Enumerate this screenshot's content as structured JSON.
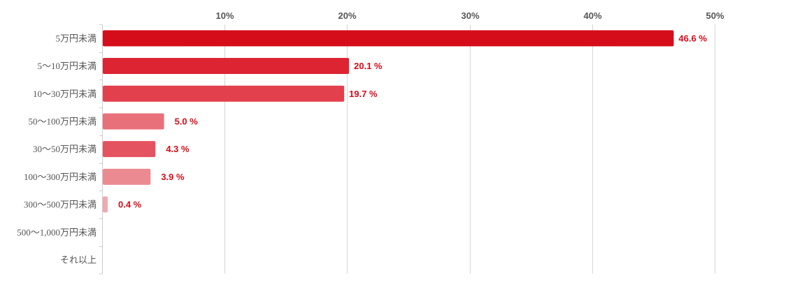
{
  "chart_data": {
    "type": "bar",
    "orientation": "horizontal",
    "title": "",
    "xlabel": "",
    "ylabel": "",
    "xlim": [
      0,
      0.55
    ],
    "x_ticks": [
      0.1,
      0.2,
      0.3,
      0.4,
      0.5
    ],
    "x_tick_labels": [
      "10%",
      "20%",
      "30%",
      "40%",
      "50%"
    ],
    "x_axis_position": "top",
    "grid": true,
    "legend": "none",
    "categories": [
      "5万円未満",
      "5〜10万円未満",
      "10〜30万円未満",
      "50〜100万円未満",
      "30〜50万円未満",
      "100〜300万円未満",
      "300〜500万円未満",
      "500〜1,000万円未満",
      "それ以上"
    ],
    "values": [
      0.466,
      0.201,
      0.197,
      0.05,
      0.043,
      0.039,
      0.004,
      null,
      null
    ],
    "value_labels": [
      "46.6 %",
      "20.1 %",
      "19.7 %",
      "5.0 %",
      "4.3 %",
      "3.9 %",
      "0.4 %",
      "",
      ""
    ],
    "bar_colors": [
      "#d50c1a",
      "#dc2432",
      "#e2404c",
      "#e8707a",
      "#e45360",
      "#ec8a92",
      "#f0a9b0",
      "#f0a9b0",
      "#f0a9b0"
    ],
    "label_color": "#d50c1a"
  }
}
